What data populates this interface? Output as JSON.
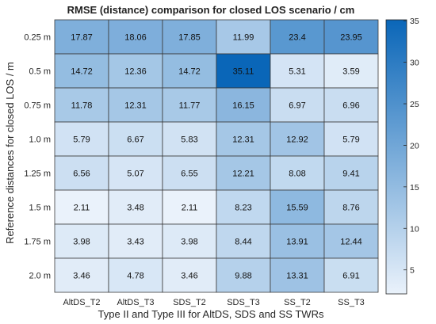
{
  "chart_data": {
    "type": "heatmap",
    "title": "RMSE (distance) comparison for closed LOS scenario / cm",
    "xlabel": "Type II and Type III for AltDS, SDS and SS TWRs",
    "ylabel": "Reference distances for closed LOS / m",
    "x_categories": [
      "AltDS_T2",
      "AltDS_T3",
      "SDS_T2",
      "SDS_T3",
      "SS_T2",
      "SS_T3"
    ],
    "y_categories": [
      "0.25 m",
      "0.5 m",
      "0.75 m",
      "1.0 m",
      "1.25 m",
      "1.5 m",
      "1.75 m",
      "2.0 m"
    ],
    "values": [
      [
        17.87,
        18.06,
        17.85,
        11.99,
        23.4,
        23.95
      ],
      [
        14.72,
        12.36,
        14.72,
        35.11,
        5.31,
        3.59
      ],
      [
        11.78,
        12.31,
        11.77,
        16.15,
        6.97,
        6.96
      ],
      [
        5.79,
        6.67,
        5.83,
        12.31,
        12.92,
        5.79
      ],
      [
        6.56,
        5.07,
        6.55,
        12.21,
        8.08,
        9.41
      ],
      [
        2.11,
        3.48,
        2.11,
        8.23,
        15.59,
        8.76
      ],
      [
        3.98,
        3.43,
        3.98,
        8.44,
        13.91,
        12.44
      ],
      [
        3.46,
        4.78,
        3.46,
        9.88,
        13.31,
        6.91
      ]
    ],
    "value_labels": [
      [
        "17.87",
        "18.06",
        "17.85",
        "11.99",
        "23.4",
        "23.95"
      ],
      [
        "14.72",
        "12.36",
        "14.72",
        "35.11",
        "5.31",
        "3.59"
      ],
      [
        "11.78",
        "12.31",
        "11.77",
        "16.15",
        "6.97",
        "6.96"
      ],
      [
        "5.79",
        "6.67",
        "5.83",
        "12.31",
        "12.92",
        "5.79"
      ],
      [
        "6.56",
        "5.07",
        "6.55",
        "12.21",
        "8.08",
        "9.41"
      ],
      [
        "2.11",
        "3.48",
        "2.11",
        "8.23",
        "15.59",
        "8.76"
      ],
      [
        "3.98",
        "3.43",
        "3.98",
        "8.44",
        "13.91",
        "12.44"
      ],
      [
        "3.46",
        "4.78",
        "3.46",
        "9.88",
        "13.31",
        "6.91"
      ]
    ],
    "colorbar": {
      "ticks": [
        5,
        10,
        15,
        20,
        25,
        30,
        35
      ],
      "range": [
        2.11,
        35.11
      ],
      "color_low": "#eaf2fb",
      "color_high": "#0a66b8"
    },
    "grid": true
  }
}
